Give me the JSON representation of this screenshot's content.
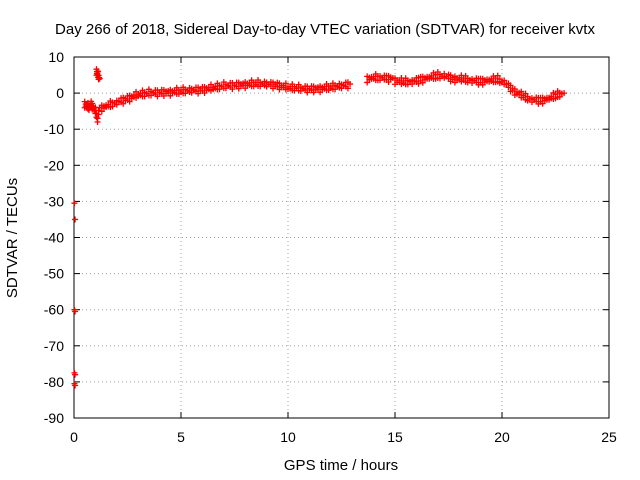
{
  "chart_data": {
    "type": "scatter",
    "title": "Day 266 of 2018, Sidereal Day-to-day VTEC variation (SDTVAR) for receiver kvtx",
    "xlabel": "GPS time / hours",
    "ylabel": "SDTVAR / TECUs",
    "xlim": [
      0,
      25
    ],
    "ylim": [
      -90,
      10
    ],
    "xticks": [
      0,
      5,
      10,
      15,
      20,
      25
    ],
    "yticks": [
      10,
      0,
      -10,
      -20,
      -30,
      -40,
      -50,
      -60,
      -70,
      -80,
      -90
    ],
    "grid": true,
    "marker": "plus",
    "series": [
      {
        "name": "SDTVAR",
        "color": "#ff0000",
        "segments": [
          {
            "x": [
              0.5,
              0.6,
              0.7,
              0.8,
              0.9,
              1.0,
              1.1,
              1.2
            ],
            "y": [
              -3,
              -3.5,
              -4,
              -3,
              -4,
              -5,
              -7,
              -4
            ]
          },
          {
            "x": [
              1.05,
              1.1,
              1.15,
              1.2
            ],
            "y": [
              6,
              5.5,
              4.5,
              4
            ]
          },
          {
            "x": [
              1.3,
              1.6,
              2.0,
              2.5,
              3.0,
              3.5,
              4.0,
              4.5,
              5.0,
              5.5,
              6.0,
              6.5,
              7.0,
              7.5,
              8.0,
              8.5,
              9.0,
              9.5,
              10.0,
              10.5,
              11.0,
              11.5,
              12.0,
              12.5,
              12.9
            ],
            "y": [
              -4,
              -3.5,
              -2.5,
              -1.5,
              -0.5,
              0,
              0.2,
              0.3,
              0.5,
              0.8,
              1.0,
              1.4,
              2.0,
              2.2,
              2.4,
              2.6,
              2.5,
              2.2,
              1.5,
              1.3,
              1.2,
              1.3,
              1.6,
              2.0,
              2.5
            ]
          },
          {
            "x": [
              13.7,
              14.0,
              14.3,
              14.6,
              14.9
            ],
            "y": [
              4,
              4.2,
              4.3,
              4.1,
              4.2
            ]
          },
          {
            "x": [
              15.0,
              15.4,
              15.8,
              16.2,
              16.6,
              17.0,
              17.4,
              17.8,
              18.2,
              18.6,
              19.0,
              19.4,
              19.8,
              20.2,
              20.6,
              21.0,
              21.4,
              21.8,
              22.2,
              22.6,
              22.9
            ],
            "y": [
              3.5,
              3.0,
              3.2,
              3.8,
              4.3,
              4.8,
              4.6,
              4.0,
              3.8,
              3.5,
              3.3,
              3.5,
              3.8,
              2.5,
              0.5,
              -1.0,
              -1.8,
              -2.0,
              -1.5,
              -0.5,
              0
            ]
          }
        ],
        "outliers": {
          "x": [
            0.02,
            0.05,
            0.02,
            0.05,
            0.02,
            0.05,
            0.02,
            0.05,
            1.1
          ],
          "y": [
            -30.5,
            -35,
            -60,
            -60.5,
            -77.5,
            -78,
            -80.5,
            -81,
            -8
          ]
        }
      }
    ]
  }
}
